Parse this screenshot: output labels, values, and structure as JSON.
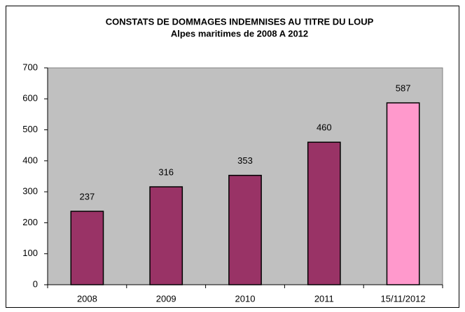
{
  "chart_data": {
    "type": "bar",
    "title": "CONSTATS DE DOMMAGES INDEMNISES AU TITRE DU LOUP",
    "subtitle": "Alpes maritimes de 2008 A 2012",
    "categories": [
      "2008",
      "2009",
      "2010",
      "2011",
      "15/11/2012"
    ],
    "values": [
      237,
      316,
      353,
      460,
      587
    ],
    "colors": [
      "#993366",
      "#993366",
      "#993366",
      "#993366",
      "#ff99cc"
    ],
    "ylim": [
      0,
      700
    ],
    "yticks": [
      0,
      100,
      200,
      300,
      400,
      500,
      600,
      700
    ],
    "plot_background": "#c0c0c0",
    "grid": false
  }
}
